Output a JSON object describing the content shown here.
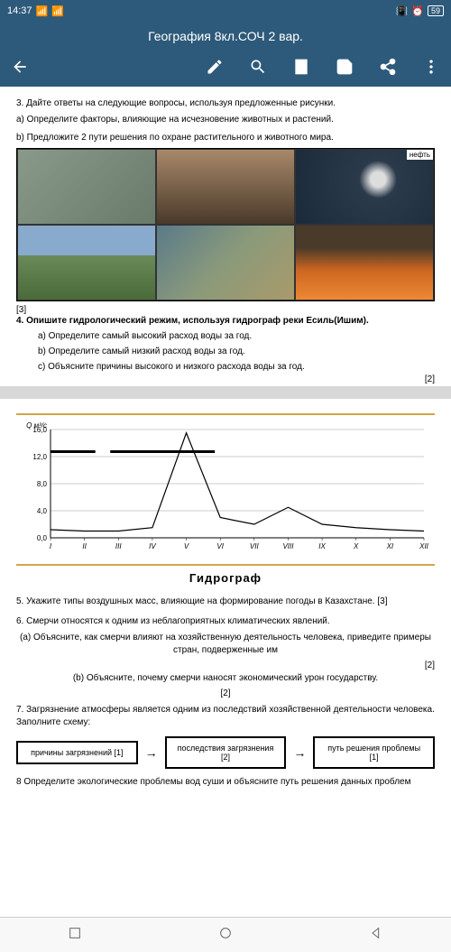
{
  "status": {
    "time": "14:37",
    "battery": "59"
  },
  "title": "География 8кл.СОЧ 2 вар.",
  "q3": {
    "main": "3. Дайте ответы на следующие вопросы, используя предложенные рисунки.",
    "a": "а) Определите факторы, влияющие на исчезновение животных и растений.",
    "b": "b) Предложите 2 пути решения по охране растительного и животного мира.",
    "oil_label": "нефть",
    "score": "[3]"
  },
  "q4": {
    "main": "4. Опишите гидрологический режим, используя гидрограф реки Есиль(Ишим).",
    "a": "a)  Определите самый высокий расход воды за год.",
    "b": "b)  Определите самый низкий расход воды за год.",
    "c": "c)  Объясните причины высокого и низкого расхода воды за год.",
    "score": "[2]"
  },
  "chart": {
    "ylabel": "Q м³/с",
    "ymax": 16.0,
    "yticks": [
      0,
      4.0,
      8.0,
      12.0,
      16.0
    ],
    "xlabels": [
      "I",
      "II",
      "III",
      "IV",
      "V",
      "VI",
      "VII",
      "VIII",
      "IX",
      "X",
      "XI",
      "XII"
    ],
    "values": [
      1.2,
      1.0,
      1.0,
      1.5,
      15.5,
      3.0,
      2.0,
      4.5,
      2.0,
      1.5,
      1.2,
      1.0
    ],
    "line_color": "#000000",
    "grid_color": "#999999",
    "title": "Гидрограф"
  },
  "q5": "5. Укажите типы воздушных масс, влияющие на формирование погоды в Казахстане. [3]",
  "q6": {
    "main": "6.  Смерчи относятся к одним из неблагоприятных климатических явлений.",
    "a": "(а) Объясните, как смерчи влияют на хозяйственную деятельность человека, приведите примеры стран, подверженные им",
    "a_score": "[2]",
    "b": "(b) Объясните, почему смерчи наносят экономический урон государству.",
    "b_score": "[2]"
  },
  "q7": {
    "main": "7. Загрязнение атмосферы является одним из последствий хозяйственной деятельности человека. Заполните схему:",
    "box1": "причины загрязнений [1]",
    "box2": "последствия загрязнения [2]",
    "box3": "путь решения проблемы [1]"
  },
  "q8": "8 Определите экологические проблемы вод суши и объясните путь решения данных проблем"
}
